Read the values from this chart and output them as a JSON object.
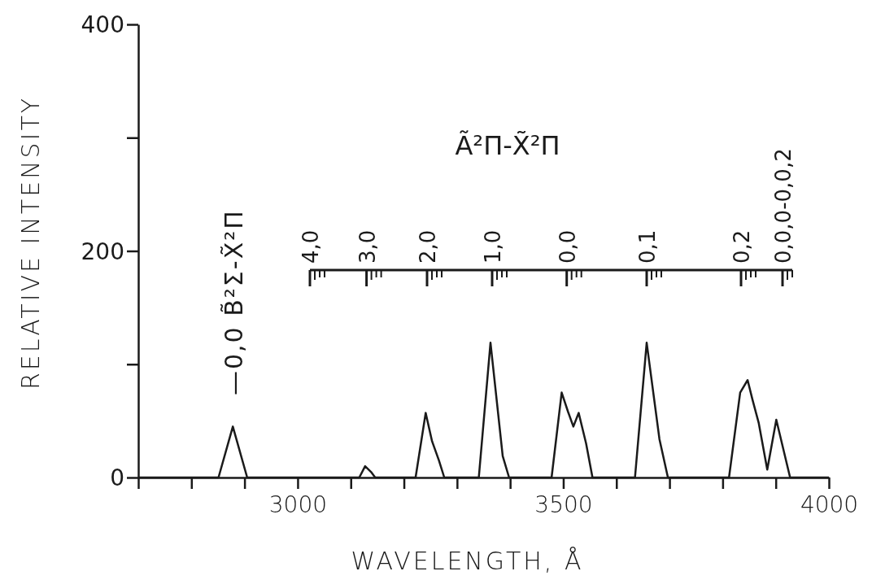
{
  "chart_data": {
    "type": "line",
    "xlabel": "WAVELENGTH, Å",
    "ylabel": "RELATIVE INTENSITY",
    "xlim": [
      2700,
      4000
    ],
    "ylim": [
      0,
      400
    ],
    "xticks": [
      {
        "value": 2700,
        "label": null
      },
      {
        "value": 2800,
        "label": null
      },
      {
        "value": 2900,
        "label": null
      },
      3000,
      {
        "value": 3100,
        "label": null
      },
      {
        "value": 3200,
        "label": null
      },
      {
        "value": 3300,
        "label": null
      },
      {
        "value": 3400,
        "label": null
      },
      3500,
      {
        "value": 3600,
        "label": null
      },
      {
        "value": 3700,
        "label": null
      },
      {
        "value": 3800,
        "label": null
      },
      {
        "value": 3900,
        "label": null
      },
      4000
    ],
    "yticks": [
      0,
      {
        "value": 100,
        "label": null
      },
      200,
      {
        "value": 300,
        "label": null
      },
      400
    ],
    "grid": false,
    "marker": "none",
    "line_style": "solid",
    "series": [
      {
        "color": "#1a1a1a",
        "x": [
          2700,
          2851,
          2878,
          2905,
          3116,
          3127,
          3138,
          3146,
          3222,
          3241,
          3253,
          3266,
          3276,
          3341,
          3363,
          3386,
          3398,
          3478,
          3497,
          3509,
          3519,
          3529,
          3543,
          3555,
          3635,
          3657,
          3681,
          3697,
          3812,
          3833,
          3847,
          3856,
          3868,
          3884,
          3901,
          3927,
          4000
        ],
        "values": [
          0,
          0,
          45,
          0,
          0,
          10,
          5,
          0,
          0,
          57,
          32,
          15,
          0,
          0,
          119,
          19,
          0,
          0,
          75,
          58,
          45,
          57,
          30,
          0,
          0,
          119,
          34,
          0,
          0,
          75,
          86,
          69,
          48,
          7,
          51,
          0,
          0
        ]
      }
    ],
    "annotations": [
      "—0,0 B̃²Σ-X̃²Π",
      "Ã²Π-X̃²Π",
      "4,0",
      "3,0",
      "2,0",
      "1,0",
      "0,0",
      "0,1",
      "0,2",
      "0,0,0-0,0,2"
    ]
  }
}
